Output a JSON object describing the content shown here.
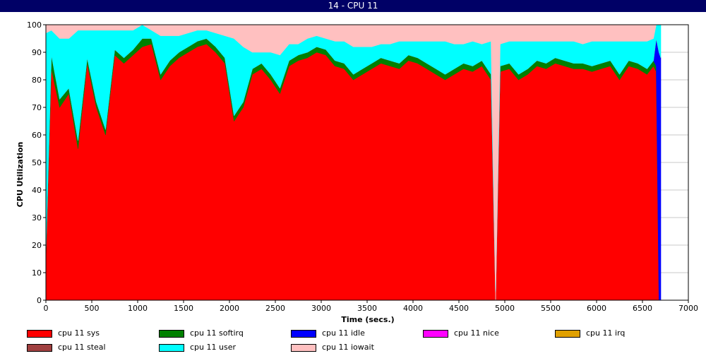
{
  "window": {
    "title": "14 - CPU 11"
  },
  "chart_data": {
    "type": "area",
    "stacked": true,
    "xlabel": "Time (secs.)",
    "ylabel": "CPU Utilization",
    "xlim": [
      0,
      7000
    ],
    "ylim": [
      0,
      100
    ],
    "xticks": [
      0,
      500,
      1000,
      1500,
      2000,
      2500,
      3000,
      3500,
      4000,
      4500,
      5000,
      5500,
      6000,
      6500,
      7000
    ],
    "yticks": [
      0,
      10,
      20,
      30,
      40,
      50,
      60,
      70,
      80,
      90,
      100
    ],
    "grid": true,
    "legend_position": "bottom",
    "x": [
      0,
      60,
      150,
      250,
      350,
      450,
      550,
      650,
      750,
      850,
      950,
      1050,
      1150,
      1250,
      1350,
      1450,
      1550,
      1650,
      1750,
      1850,
      1950,
      2050,
      2150,
      2250,
      2350,
      2450,
      2550,
      2650,
      2750,
      2850,
      2950,
      3050,
      3150,
      3250,
      3350,
      3450,
      3550,
      3650,
      3750,
      3850,
      3950,
      4050,
      4150,
      4250,
      4350,
      4450,
      4550,
      4650,
      4750,
      4850,
      4900,
      4950,
      5050,
      5150,
      5250,
      5350,
      5450,
      5550,
      5650,
      5750,
      5850,
      5950,
      6050,
      6150,
      6250,
      6350,
      6450,
      6550,
      6620,
      6650,
      6680,
      6700
    ],
    "series": [
      {
        "name": "cpu 11 sys",
        "color": "#ff0000",
        "values": [
          15,
          84,
          70,
          75,
          55,
          86,
          70,
          60,
          89,
          86,
          89,
          92,
          93,
          80,
          85,
          88,
          90,
          92,
          93,
          90,
          86,
          65,
          70,
          82,
          84,
          80,
          75,
          85,
          87,
          88,
          90,
          89,
          85,
          84,
          80,
          82,
          84,
          86,
          85,
          84,
          87,
          86,
          84,
          82,
          80,
          82,
          84,
          83,
          85,
          80,
          0,
          83,
          84,
          80,
          82,
          85,
          84,
          86,
          85,
          84,
          84,
          83,
          84,
          85,
          80,
          85,
          84,
          82,
          85,
          83,
          0,
          0
        ]
      },
      {
        "name": "cpu 11 softirq",
        "color": "#008000",
        "values": [
          2,
          5,
          3,
          2,
          3,
          2,
          2,
          2,
          2,
          2,
          2,
          3,
          2,
          2,
          2,
          2,
          2,
          2,
          2,
          2,
          2,
          2,
          2,
          2,
          2,
          2,
          2,
          2,
          2,
          2,
          2,
          2,
          2,
          2,
          2,
          2,
          2,
          2,
          2,
          2,
          2,
          2,
          2,
          2,
          2,
          2,
          2,
          2,
          2,
          2,
          0,
          2,
          2,
          2,
          2,
          2,
          2,
          2,
          2,
          2,
          2,
          2,
          2,
          2,
          2,
          2,
          2,
          2,
          2,
          2,
          0,
          0
        ]
      },
      {
        "name": "cpu 11 idle",
        "color": "#0000ff",
        "values": [
          0,
          0,
          0,
          0,
          0,
          0,
          0,
          0,
          0,
          0,
          0,
          0,
          0,
          0,
          0,
          0,
          0,
          0,
          0,
          0,
          0,
          0,
          0,
          0,
          0,
          0,
          0,
          0,
          0,
          0,
          0,
          0,
          0,
          0,
          0,
          0,
          0,
          0,
          0,
          0,
          0,
          0,
          0,
          0,
          0,
          0,
          0,
          0,
          0,
          0,
          0,
          0,
          0,
          0,
          0,
          0,
          0,
          0,
          0,
          0,
          0,
          0,
          0,
          0,
          0,
          0,
          0,
          0,
          0,
          10,
          90,
          88
        ]
      },
      {
        "name": "cpu 11 nice",
        "color": "#ff00ff",
        "values": [
          0,
          0,
          0,
          0,
          0,
          0,
          0,
          0,
          0,
          0,
          0,
          0,
          0,
          0,
          0,
          0,
          0,
          0,
          0,
          0,
          0,
          0,
          0,
          0,
          0,
          0,
          0,
          0,
          0,
          0,
          0,
          0,
          0,
          0,
          0,
          0,
          0,
          0,
          0,
          0,
          0,
          0,
          0,
          0,
          0,
          0,
          0,
          0,
          0,
          0,
          0,
          0,
          0,
          0,
          0,
          0,
          0,
          0,
          0,
          0,
          0,
          0,
          0,
          0,
          0,
          0,
          0,
          0,
          0,
          0,
          0,
          0
        ]
      },
      {
        "name": "cpu 11 irq",
        "color": "#e0a000",
        "values": [
          0,
          0,
          0,
          0,
          0,
          0,
          0,
          0,
          0,
          0,
          0,
          0,
          0,
          0,
          0,
          0,
          0,
          0,
          0,
          0,
          0,
          0,
          0,
          0,
          0,
          0,
          0,
          0,
          0,
          0,
          0,
          0,
          0,
          0,
          0,
          0,
          0,
          0,
          0,
          0,
          0,
          0,
          0,
          0,
          0,
          0,
          0,
          0,
          0,
          0,
          0,
          0,
          0,
          0,
          0,
          0,
          0,
          0,
          0,
          0,
          0,
          0,
          0,
          0,
          0,
          0,
          0,
          0,
          0,
          0,
          0,
          0
        ]
      },
      {
        "name": "cpu 11 steal",
        "color": "#a04040",
        "values": [
          0,
          0,
          0,
          0,
          0,
          0,
          0,
          0,
          0,
          0,
          0,
          0,
          0,
          0,
          0,
          0,
          0,
          0,
          0,
          0,
          0,
          0,
          0,
          0,
          0,
          0,
          0,
          0,
          0,
          0,
          0,
          0,
          0,
          0,
          0,
          0,
          0,
          0,
          0,
          0,
          0,
          0,
          0,
          0,
          0,
          0,
          0,
          0,
          0,
          0,
          0,
          0,
          0,
          0,
          0,
          0,
          0,
          0,
          0,
          0,
          0,
          0,
          0,
          0,
          0,
          0,
          0,
          0,
          0,
          0,
          0,
          0
        ]
      },
      {
        "name": "cpu 11 user",
        "color": "#00ffff",
        "values": [
          80,
          9,
          22,
          18,
          40,
          10,
          26,
          36,
          7,
          10,
          7,
          5,
          3,
          14,
          9,
          6,
          5,
          4,
          3,
          5,
          8,
          28,
          20,
          6,
          4,
          8,
          12,
          6,
          4,
          5,
          4,
          4,
          7,
          8,
          10,
          8,
          6,
          5,
          6,
          8,
          5,
          6,
          8,
          10,
          12,
          9,
          7,
          9,
          6,
          12,
          0,
          8,
          8,
          12,
          10,
          7,
          8,
          6,
          7,
          8,
          7,
          9,
          8,
          7,
          12,
          7,
          8,
          10,
          8,
          5,
          10,
          12
        ]
      },
      {
        "name": "cpu 11 iowait",
        "color": "#ffc0c0",
        "values": [
          3,
          2,
          5,
          5,
          2,
          2,
          2,
          2,
          2,
          2,
          2,
          0,
          2,
          4,
          4,
          4,
          3,
          2,
          2,
          3,
          4,
          5,
          8,
          10,
          10,
          10,
          11,
          7,
          7,
          5,
          4,
          5,
          6,
          6,
          8,
          8,
          8,
          7,
          7,
          6,
          6,
          6,
          6,
          6,
          6,
          7,
          7,
          6,
          7,
          6,
          100,
          7,
          6,
          6,
          6,
          6,
          6,
          6,
          6,
          6,
          7,
          6,
          6,
          6,
          6,
          6,
          6,
          6,
          5,
          0,
          0,
          0
        ]
      }
    ]
  }
}
